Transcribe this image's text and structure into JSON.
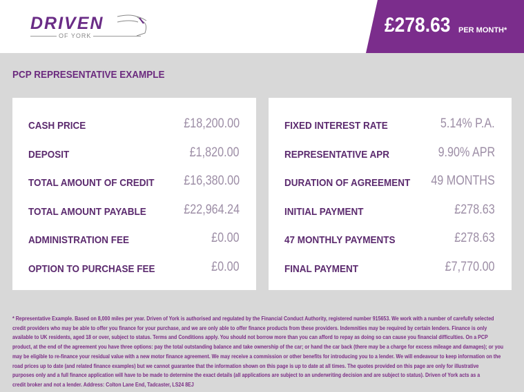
{
  "brand": {
    "name": "DRIVEN",
    "sub": "OF YORK"
  },
  "header": {
    "price": "£278.63",
    "per_month": "PER MONTH*",
    "accent": "#7b2d8c"
  },
  "title": "PCP REPRESENTATIVE EXAMPLE",
  "left": [
    {
      "label": "CASH PRICE",
      "value": "£18,200.00"
    },
    {
      "label": "DEPOSIT",
      "value": "£1,820.00"
    },
    {
      "label": "TOTAL AMOUNT OF CREDIT",
      "value": "£16,380.00"
    },
    {
      "label": "TOTAL AMOUNT PAYABLE",
      "value": "£22,964.24"
    },
    {
      "label": "ADMINISTRATION FEE",
      "value": "£0.00"
    },
    {
      "label": "OPTION TO PURCHASE FEE",
      "value": "£0.00"
    }
  ],
  "right": [
    {
      "label": "FIXED INTEREST RATE",
      "value": "5.14% P.A."
    },
    {
      "label": "REPRESENTATIVE APR",
      "value": "9.90% APR"
    },
    {
      "label": "DURATION OF AGREEMENT",
      "value": "49 MONTHS"
    },
    {
      "label": "INITIAL PAYMENT",
      "value": "£278.63"
    },
    {
      "label": "47 MONTHLY PAYMENTS",
      "value": "£278.63"
    },
    {
      "label": "FINAL PAYMENT",
      "value": "£7,770.00"
    }
  ],
  "disclaimer": [
    "* Representative Example. Based on 8,000 miles per year. Driven of York is authorised and regulated by the Financial Conduct Authority, registered number 915653. We work with a number of carefully selected",
    "credit providers who may be able to offer you finance for your purchase, and we are only able to offer finance products from these providers. Indemnities may be required by certain lenders. Finance is only",
    "available to UK residents, aged 18 or over, subject to status. Terms and Conditions apply. You should not borrow more than you can afford to repay as doing so can cause you financial difficulties. On a PCP",
    "product, at the end of the agreement you have three options: pay the total outstanding balance and take ownership of the car; or hand the car back (there may be a charge for excess mileage and damages); or you",
    "may be eligible to re-finance your residual value with a new motor finance agreement. We may receive a commission or other benefits for introducing you to a lender. We will endeavour to keep information on the",
    "road prices up to date (and related finance examples) but we cannot guarantee that the information shown on this page is up to date at all times. The quotes provided on this page are only for illustrative",
    "purposes only and a full finance application will have to be made to determine the exact details (all applications are subject to an underwriting decision and are subject to status). Driven of York acts as a",
    "credit broker and not a lender. Address: Colton Lane End, Tadcaster, LS24 8EJ"
  ]
}
